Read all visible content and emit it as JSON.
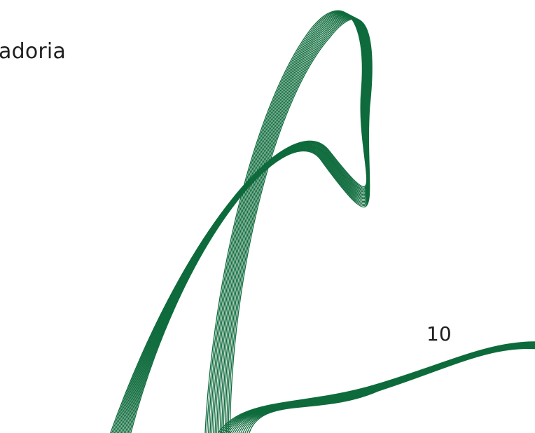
{
  "page": {
    "heading": "adoria",
    "page_number": "10"
  },
  "decoration": {
    "name": "wave-lines-ornament",
    "stroke_color": "#0e6b3c",
    "line_count": 16
  }
}
